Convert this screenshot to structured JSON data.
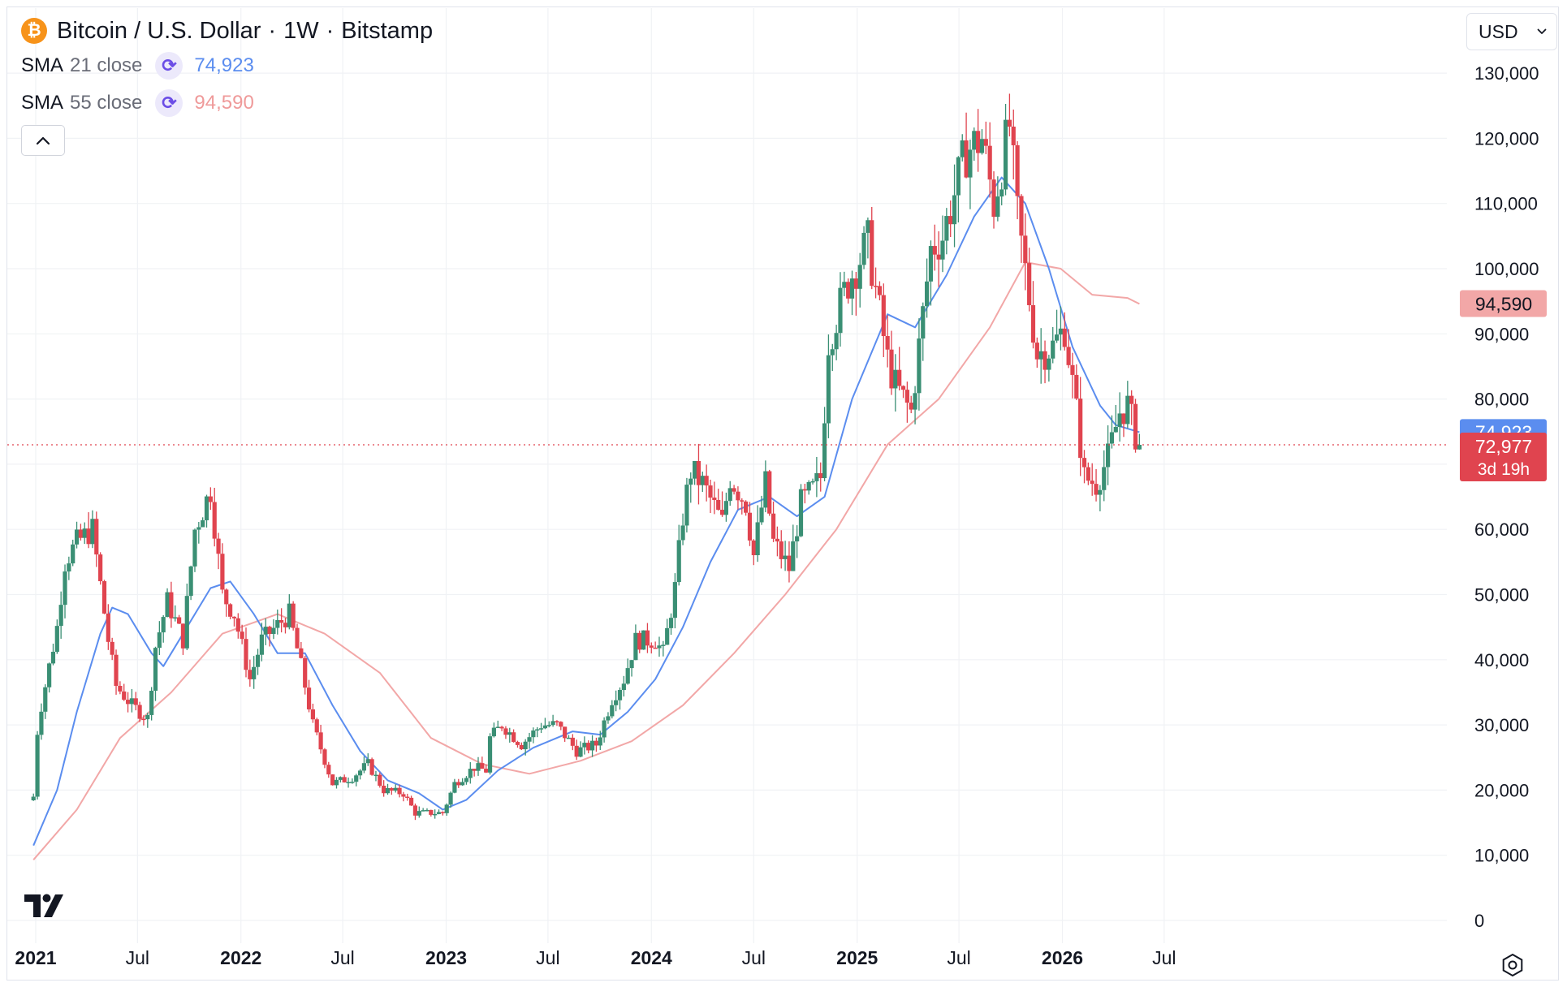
{
  "header": {
    "symbol_icon": "bitcoin-icon",
    "symbol": "Bitcoin / U.S. Dollar",
    "interval": "1W",
    "exchange": "Bitstamp",
    "separator": "·"
  },
  "indicators": [
    {
      "name": "SMA",
      "params": "21 close",
      "value": "74,923",
      "color": "#5b8def",
      "icon": "refresh-icon"
    },
    {
      "name": "SMA",
      "params": "55 close",
      "value": "94,590",
      "color": "#ef9a9a",
      "icon": "refresh-icon"
    }
  ],
  "controls": {
    "collapse_icon": "chevron-up-icon",
    "currency": "USD",
    "currency_icon": "chevron-down-icon",
    "settings_icon": "gear-icon",
    "logo_icon": "tradingview-logo-icon"
  },
  "colors": {
    "up": "#26a69a",
    "up_body": "#3a8f74",
    "down": "#e0444f",
    "sma21": "#5b8def",
    "sma55": "#f2a7a7",
    "price_line": "#e0444f"
  },
  "chart_data": {
    "type": "candlestick",
    "interval": "1W",
    "y_ticks": [
      "0",
      "10,000",
      "20,000",
      "30,000",
      "40,000",
      "50,000",
      "60,000",
      "70,000",
      "80,000",
      "90,000",
      "100,000",
      "110,000",
      "120,000",
      "130,000"
    ],
    "ylim": [
      0,
      130000
    ],
    "x_ticks": [
      {
        "label": "2021",
        "bold": true,
        "date": "2021-01-01"
      },
      {
        "label": "Jul",
        "bold": false,
        "date": "2021-07-01"
      },
      {
        "label": "2022",
        "bold": true,
        "date": "2022-01-01"
      },
      {
        "label": "Jul",
        "bold": false,
        "date": "2022-07-01"
      },
      {
        "label": "2023",
        "bold": true,
        "date": "2023-01-01"
      },
      {
        "label": "Jul",
        "bold": false,
        "date": "2023-07-01"
      },
      {
        "label": "2024",
        "bold": true,
        "date": "2024-01-01"
      },
      {
        "label": "Jul",
        "bold": false,
        "date": "2024-07-01"
      },
      {
        "label": "2025",
        "bold": true,
        "date": "2025-01-01"
      },
      {
        "label": "Jul",
        "bold": false,
        "date": "2025-07-01"
      },
      {
        "label": "2026",
        "bold": true,
        "date": "2026-01-01"
      },
      {
        "label": "Jul",
        "bold": false,
        "date": "2026-07-01"
      }
    ],
    "xlim": [
      "2020-12-28",
      "2026-07-10"
    ],
    "price_anchors": [
      [
        "2020-12-28",
        19000
      ],
      [
        "2021-01-04",
        29000
      ],
      [
        "2021-01-11",
        33000
      ],
      [
        "2021-02-08",
        45000
      ],
      [
        "2021-02-22",
        55000
      ],
      [
        "2021-03-15",
        58000
      ],
      [
        "2021-04-12",
        60000
      ],
      [
        "2021-05-10",
        43000
      ],
      [
        "2021-05-24",
        36000
      ],
      [
        "2021-06-21",
        33000
      ],
      [
        "2021-07-19",
        31000
      ],
      [
        "2021-08-02",
        42000
      ],
      [
        "2021-08-23",
        49000
      ],
      [
        "2021-09-20",
        43000
      ],
      [
        "2021-10-11",
        60000
      ],
      [
        "2021-11-08",
        66000
      ],
      [
        "2021-11-29",
        50000
      ],
      [
        "2021-12-20",
        47000
      ],
      [
        "2022-01-17",
        37000
      ],
      [
        "2022-02-07",
        43000
      ],
      [
        "2022-03-28",
        47000
      ],
      [
        "2022-04-18",
        39000
      ],
      [
        "2022-05-09",
        30000
      ],
      [
        "2022-06-13",
        21000
      ],
      [
        "2022-07-18",
        22000
      ],
      [
        "2022-08-15",
        24000
      ],
      [
        "2022-09-12",
        20000
      ],
      [
        "2022-10-17",
        19500
      ],
      [
        "2022-11-07",
        16500
      ],
      [
        "2022-12-26",
        16500
      ],
      [
        "2023-01-16",
        21000
      ],
      [
        "2023-02-20",
        23500
      ],
      [
        "2023-03-13",
        23000
      ],
      [
        "2023-03-20",
        28000
      ],
      [
        "2023-04-10",
        30000
      ],
      [
        "2023-05-15",
        27000
      ],
      [
        "2023-06-19",
        30000
      ],
      [
        "2023-07-17",
        30000
      ],
      [
        "2023-08-21",
        26000
      ],
      [
        "2023-09-25",
        27000
      ],
      [
        "2023-10-23",
        34000
      ],
      [
        "2023-11-13",
        37000
      ],
      [
        "2023-12-04",
        43000
      ],
      [
        "2024-01-08",
        43000
      ],
      [
        "2024-01-22",
        41000
      ],
      [
        "2024-02-12",
        51000
      ],
      [
        "2024-02-26",
        62000
      ],
      [
        "2024-03-11",
        69000
      ],
      [
        "2024-04-01",
        67000
      ],
      [
        "2024-05-06",
        61000
      ],
      [
        "2024-05-20",
        68000
      ],
      [
        "2024-06-17",
        64000
      ],
      [
        "2024-07-01",
        56000
      ],
      [
        "2024-07-22",
        67000
      ],
      [
        "2024-08-05",
        58000
      ],
      [
        "2024-09-02",
        54000
      ],
      [
        "2024-09-23",
        64000
      ],
      [
        "2024-10-14",
        66000
      ],
      [
        "2024-10-28",
        68000
      ],
      [
        "2024-11-11",
        89000
      ],
      [
        "2024-12-16",
        98000
      ],
      [
        "2025-01-20",
        104000
      ],
      [
        "2025-02-24",
        86000
      ],
      [
        "2025-03-10",
        82000
      ],
      [
        "2025-04-07",
        78000
      ],
      [
        "2025-05-12",
        103000
      ],
      [
        "2025-06-02",
        105000
      ],
      [
        "2025-07-14",
        118000
      ],
      [
        "2025-08-11",
        120000
      ],
      [
        "2025-09-01",
        110000
      ],
      [
        "2025-09-29",
        122000
      ],
      [
        "2025-10-13",
        108000
      ],
      [
        "2025-11-17",
        87000
      ],
      [
        "2025-12-15",
        88000
      ],
      [
        "2026-01-05",
        91000
      ],
      [
        "2026-01-26",
        78000
      ],
      [
        "2026-02-09",
        68000
      ],
      [
        "2026-03-02",
        67000
      ],
      [
        "2026-03-23",
        71000
      ],
      [
        "2026-04-13",
        78000
      ],
      [
        "2026-04-27",
        79000
      ],
      [
        "2026-05-11",
        74500
      ],
      [
        "2026-05-18",
        72977
      ]
    ],
    "sma21": {
      "name": "SMA 21 close",
      "points": [
        [
          "2020-12-28",
          11500
        ],
        [
          "2021-02-08",
          20000
        ],
        [
          "2021-03-15",
          32000
        ],
        [
          "2021-04-26",
          44000
        ],
        [
          "2021-05-17",
          48000
        ],
        [
          "2021-06-14",
          47000
        ],
        [
          "2021-07-26",
          41000
        ],
        [
          "2021-08-16",
          39000
        ],
        [
          "2021-09-27",
          45000
        ],
        [
          "2021-11-08",
          51000
        ],
        [
          "2021-12-13",
          52000
        ],
        [
          "2022-01-24",
          47000
        ],
        [
          "2022-03-07",
          41000
        ],
        [
          "2022-04-25",
          41000
        ],
        [
          "2022-06-13",
          33000
        ],
        [
          "2022-08-01",
          26000
        ],
        [
          "2022-09-19",
          21500
        ],
        [
          "2022-11-14",
          19500
        ],
        [
          "2022-12-26",
          17000
        ],
        [
          "2023-02-06",
          18500
        ],
        [
          "2023-04-03",
          23000
        ],
        [
          "2023-06-05",
          26500
        ],
        [
          "2023-08-14",
          29000
        ],
        [
          "2023-10-02",
          28500
        ],
        [
          "2023-11-20",
          32000
        ],
        [
          "2024-01-08",
          37000
        ],
        [
          "2024-02-26",
          45000
        ],
        [
          "2024-04-15",
          55000
        ],
        [
          "2024-06-03",
          63000
        ],
        [
          "2024-07-29",
          65000
        ],
        [
          "2024-09-16",
          62000
        ],
        [
          "2024-11-04",
          65000
        ],
        [
          "2024-12-23",
          80000
        ],
        [
          "2025-02-24",
          93000
        ],
        [
          "2025-04-14",
          91000
        ],
        [
          "2025-06-09",
          99000
        ],
        [
          "2025-07-28",
          108000
        ],
        [
          "2025-09-15",
          114000
        ],
        [
          "2025-10-27",
          110000
        ],
        [
          "2025-12-08",
          100000
        ],
        [
          "2026-01-19",
          88000
        ],
        [
          "2026-03-09",
          79000
        ],
        [
          "2026-04-06",
          76000
        ],
        [
          "2026-05-18",
          74923
        ]
      ]
    },
    "sma55": {
      "name": "SMA 55 close",
      "points": [
        [
          "2020-12-28",
          9300
        ],
        [
          "2021-03-15",
          17000
        ],
        [
          "2021-05-31",
          28000
        ],
        [
          "2021-08-30",
          35000
        ],
        [
          "2021-11-29",
          44000
        ],
        [
          "2022-03-07",
          47000
        ],
        [
          "2022-05-30",
          44000
        ],
        [
          "2022-09-05",
          38000
        ],
        [
          "2022-12-05",
          28000
        ],
        [
          "2023-03-06",
          24000
        ],
        [
          "2023-05-29",
          22500
        ],
        [
          "2023-08-28",
          24500
        ],
        [
          "2023-11-27",
          27500
        ],
        [
          "2024-02-26",
          33000
        ],
        [
          "2024-05-27",
          41000
        ],
        [
          "2024-08-26",
          50000
        ],
        [
          "2024-11-25",
          60000
        ],
        [
          "2025-02-24",
          73000
        ],
        [
          "2025-05-26",
          80000
        ],
        [
          "2025-08-25",
          91000
        ],
        [
          "2025-10-27",
          101000
        ],
        [
          "2025-12-29",
          100000
        ],
        [
          "2026-02-23",
          96000
        ],
        [
          "2026-04-27",
          95500
        ],
        [
          "2026-05-18",
          94590
        ]
      ]
    },
    "last_price": {
      "value": 72977,
      "label": "72,977",
      "countdown": "3d 19h"
    },
    "sma21_label": {
      "value": 74923,
      "label": "74,923"
    },
    "sma55_label": {
      "value": 94590,
      "label": "94,590"
    }
  }
}
